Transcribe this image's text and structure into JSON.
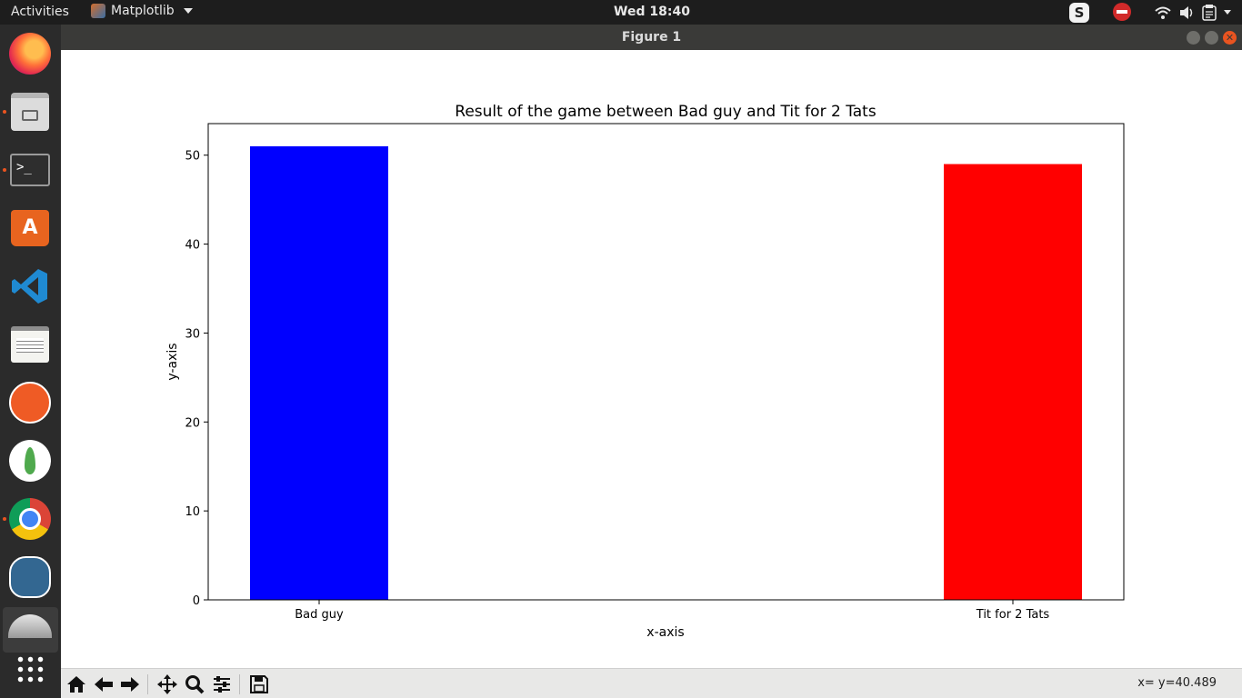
{
  "topbar": {
    "activities": "Activities",
    "app_name": "Matplotlib",
    "clock": "Wed 18:40",
    "skype_letter": "S"
  },
  "dock": {
    "apps": [
      "firefox",
      "files",
      "terminal",
      "ubuntu-software",
      "vscode",
      "text-editor",
      "postman",
      "mongodb-compass",
      "chrome",
      "pgadmin",
      "matplotlib",
      "show-applications"
    ],
    "accent_color": "#e95420"
  },
  "window": {
    "title": "Figure 1"
  },
  "toolbar": {
    "coords": "x= y=40.489"
  },
  "chart_data": {
    "type": "bar",
    "title": "Result of the game between Bad guy and Tit for 2 Tats",
    "xlabel": "x-axis",
    "ylabel": "y-axis",
    "categories": [
      "Bad guy",
      "Tit for 2 Tats"
    ],
    "values": [
      51,
      49
    ],
    "colors": [
      "#0000ff",
      "#ff0000"
    ],
    "ylim": [
      0,
      53.55
    ],
    "yticks": [
      0,
      10,
      20,
      30,
      40,
      50
    ],
    "grid": false
  }
}
